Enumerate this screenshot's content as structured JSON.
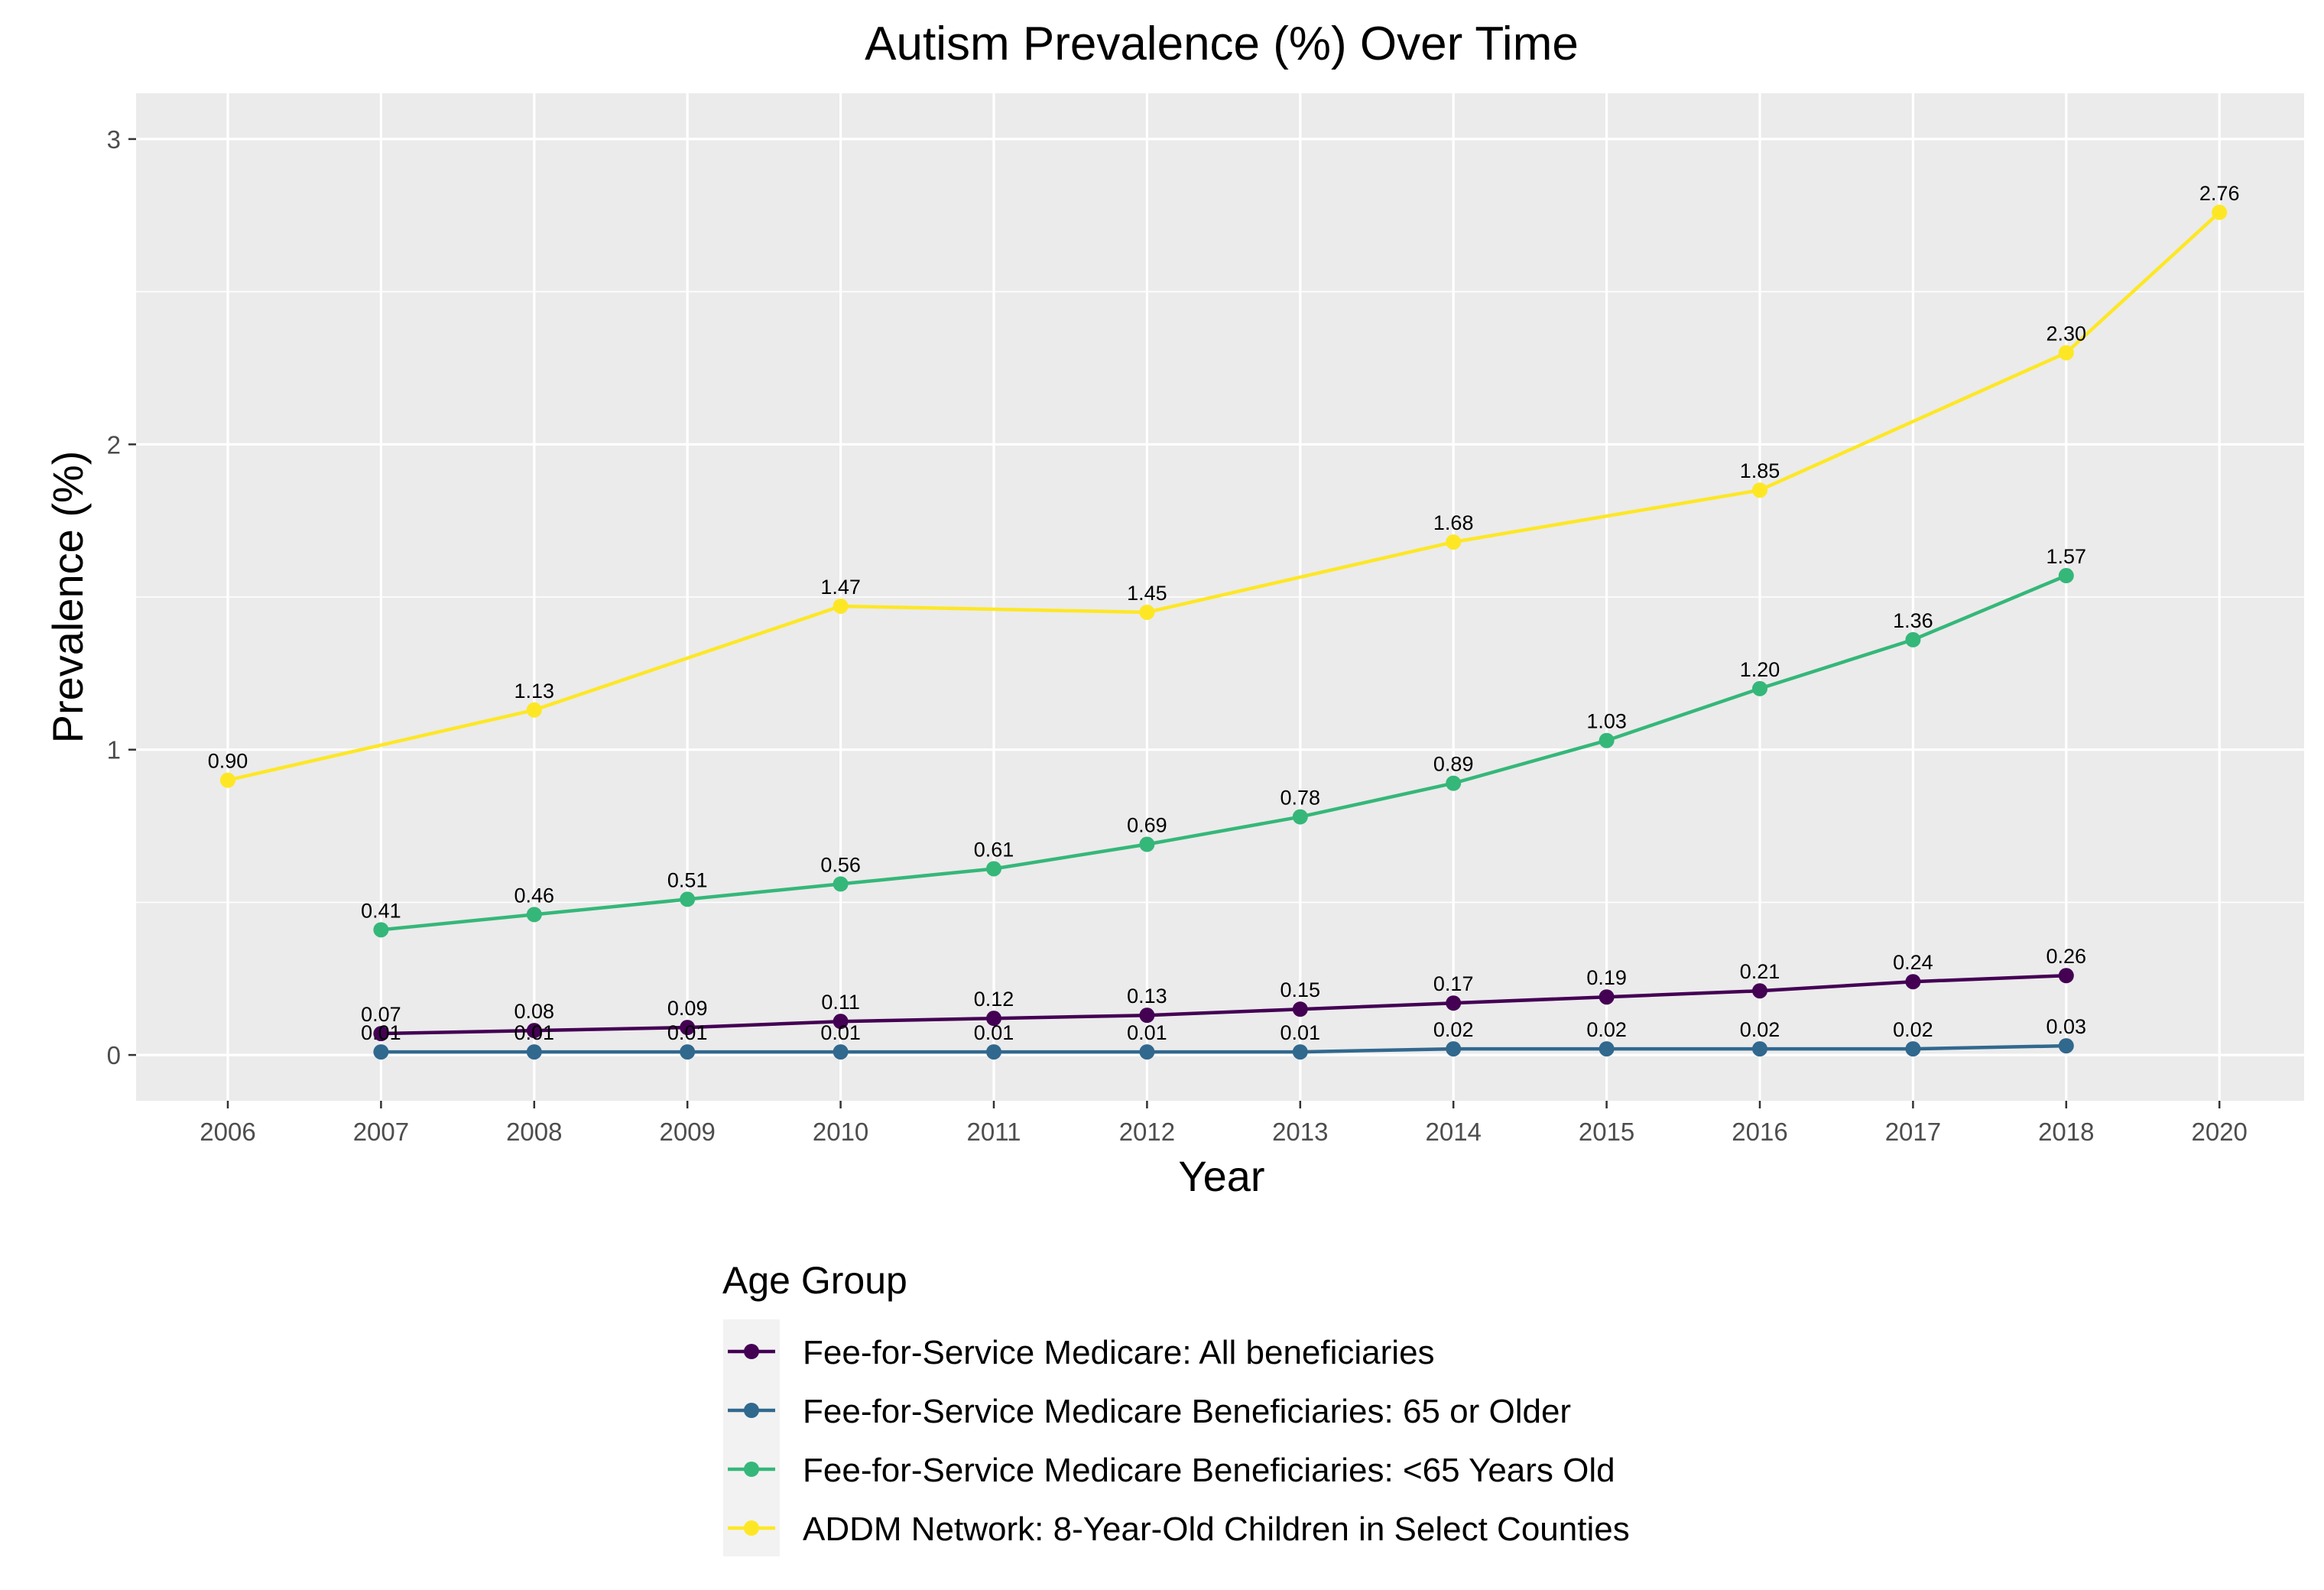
{
  "chart_data": {
    "type": "line",
    "title": "Autism Prevalence (%) Over Time",
    "xlabel": "Year",
    "ylabel": "Prevalence (%)",
    "x_categories": [
      "2006",
      "2007",
      "2008",
      "2009",
      "2010",
      "2011",
      "2012",
      "2013",
      "2014",
      "2015",
      "2016",
      "2017",
      "2018",
      "2020"
    ],
    "y_ticks": [
      0,
      1,
      2,
      3
    ],
    "ylim": [
      -0.15,
      3.15
    ],
    "grid": true,
    "legend": {
      "title": "Age Group",
      "position": "bottom"
    },
    "series": [
      {
        "name": "Fee-for-Service Medicare: All beneficiaries",
        "color": "#440154",
        "points": [
          {
            "x": "2007",
            "y": 0.07,
            "label": "0.07"
          },
          {
            "x": "2008",
            "y": 0.08,
            "label": "0.08"
          },
          {
            "x": "2009",
            "y": 0.09,
            "label": "0.09"
          },
          {
            "x": "2010",
            "y": 0.11,
            "label": "0.11"
          },
          {
            "x": "2011",
            "y": 0.12,
            "label": "0.12"
          },
          {
            "x": "2012",
            "y": 0.13,
            "label": "0.13"
          },
          {
            "x": "2013",
            "y": 0.15,
            "label": "0.15"
          },
          {
            "x": "2014",
            "y": 0.17,
            "label": "0.17"
          },
          {
            "x": "2015",
            "y": 0.19,
            "label": "0.19"
          },
          {
            "x": "2016",
            "y": 0.21,
            "label": "0.21"
          },
          {
            "x": "2017",
            "y": 0.24,
            "label": "0.24"
          },
          {
            "x": "2018",
            "y": 0.26,
            "label": "0.26"
          }
        ]
      },
      {
        "name": "Fee-for-Service Medicare Beneficiaries: 65 or Older",
        "color": "#31688e",
        "points": [
          {
            "x": "2007",
            "y": 0.01,
            "label": "0.01"
          },
          {
            "x": "2008",
            "y": 0.01,
            "label": "0.01"
          },
          {
            "x": "2009",
            "y": 0.01,
            "label": "0.01"
          },
          {
            "x": "2010",
            "y": 0.01,
            "label": "0.01"
          },
          {
            "x": "2011",
            "y": 0.01,
            "label": "0.01"
          },
          {
            "x": "2012",
            "y": 0.01,
            "label": "0.01"
          },
          {
            "x": "2013",
            "y": 0.01,
            "label": "0.01"
          },
          {
            "x": "2014",
            "y": 0.02,
            "label": "0.02"
          },
          {
            "x": "2015",
            "y": 0.02,
            "label": "0.02"
          },
          {
            "x": "2016",
            "y": 0.02,
            "label": "0.02"
          },
          {
            "x": "2017",
            "y": 0.02,
            "label": "0.02"
          },
          {
            "x": "2018",
            "y": 0.03,
            "label": "0.03"
          }
        ]
      },
      {
        "name": "Fee-for-Service Medicare Beneficiaries: <65 Years Old",
        "color": "#35b779",
        "points": [
          {
            "x": "2007",
            "y": 0.41,
            "label": "0.41"
          },
          {
            "x": "2008",
            "y": 0.46,
            "label": "0.46"
          },
          {
            "x": "2009",
            "y": 0.51,
            "label": "0.51"
          },
          {
            "x": "2010",
            "y": 0.56,
            "label": "0.56"
          },
          {
            "x": "2011",
            "y": 0.61,
            "label": "0.61"
          },
          {
            "x": "2012",
            "y": 0.69,
            "label": "0.69"
          },
          {
            "x": "2013",
            "y": 0.78,
            "label": "0.78"
          },
          {
            "x": "2014",
            "y": 0.89,
            "label": "0.89"
          },
          {
            "x": "2015",
            "y": 1.03,
            "label": "1.03"
          },
          {
            "x": "2016",
            "y": 1.2,
            "label": "1.20"
          },
          {
            "x": "2017",
            "y": 1.36,
            "label": "1.36"
          },
          {
            "x": "2018",
            "y": 1.57,
            "label": "1.57"
          }
        ]
      },
      {
        "name": "ADDM Network: 8-Year-Old Children in Select Counties",
        "color": "#fde725",
        "points": [
          {
            "x": "2006",
            "y": 0.9,
            "label": "0.90"
          },
          {
            "x": "2008",
            "y": 1.13,
            "label": "1.13"
          },
          {
            "x": "2010",
            "y": 1.47,
            "label": "1.47"
          },
          {
            "x": "2012",
            "y": 1.45,
            "label": "1.45"
          },
          {
            "x": "2014",
            "y": 1.68,
            "label": "1.68"
          },
          {
            "x": "2016",
            "y": 1.85,
            "label": "1.85"
          },
          {
            "x": "2018",
            "y": 2.3,
            "label": "2.30"
          },
          {
            "x": "2020",
            "y": 2.76,
            "label": "2.76"
          }
        ]
      }
    ]
  }
}
